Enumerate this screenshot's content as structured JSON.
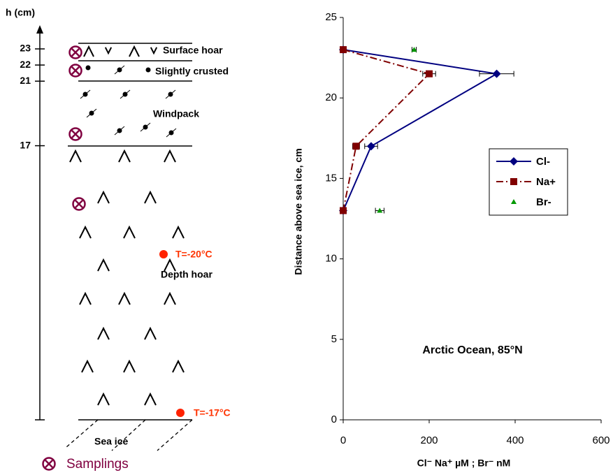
{
  "chart_data": {
    "type": "scatter",
    "xlabel": "Cl⁻ Na⁺ µM ; Br⁻ nM",
    "ylabel": "Distance above sea ice, cm",
    "annotation": "Arctic Ocean, 85°N",
    "xlim": [
      0,
      600
    ],
    "xticks": [
      0,
      200,
      400,
      600
    ],
    "ylim": [
      0,
      25
    ],
    "yticks": [
      0,
      5,
      10,
      15,
      20,
      25
    ],
    "legend": "right",
    "series": [
      {
        "name": "Cl-",
        "color": "#000080",
        "marker": "diamond",
        "line": "solid",
        "x": [
          0,
          357,
          65,
          0
        ],
        "values": [
          23,
          21.5,
          17,
          13
        ],
        "x_errors": [
          null,
          40,
          15,
          null
        ]
      },
      {
        "name": "Na+",
        "color": "#800000",
        "marker": "square",
        "line": "dashdot",
        "x": [
          0,
          200,
          30,
          0
        ],
        "values": [
          23,
          21.5,
          17,
          13
        ],
        "x_errors": [
          null,
          15,
          8,
          null
        ]
      },
      {
        "name": "Br-",
        "color": "#009900",
        "marker": "triangle",
        "line": "none",
        "x": [
          165,
          85
        ],
        "values": [
          23,
          13
        ],
        "x_errors": [
          5,
          10
        ]
      }
    ]
  },
  "diagram": {
    "axis_label": "h (cm)",
    "height_ticks": [
      23,
      22,
      21,
      17
    ],
    "layers": [
      "Surface hoar",
      "Slightly crusted",
      "Windpack",
      "Depth hoar",
      "Sea ice"
    ],
    "temperatures": [
      "T=-20°C",
      "T=-17°C"
    ],
    "legend": "Samplings"
  }
}
